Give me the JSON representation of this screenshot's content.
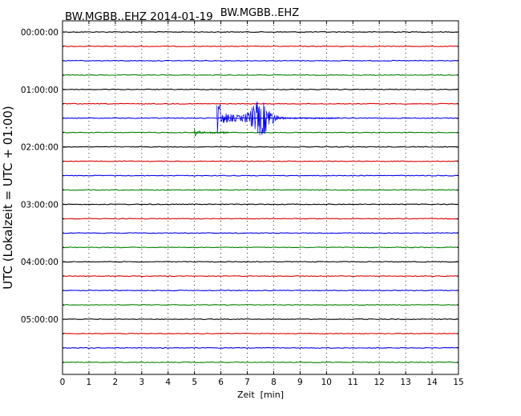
{
  "figure": {
    "title_left": "BW.MGBB..EHZ 2014-01-19",
    "title_center": "BW.MGBB..EHZ"
  },
  "chart_data": {
    "type": "line",
    "chart_kind": "dayplot-seismogram",
    "xlabel": "Zeit  [min]",
    "ylabel": "UTC (Lokalzeit = UTC + 01:00)",
    "xlim": [
      0,
      15
    ],
    "x_ticks": [
      "0",
      "1",
      "2",
      "3",
      "4",
      "5",
      "6",
      "7",
      "8",
      "9",
      "10",
      "11",
      "12",
      "13",
      "14",
      "15"
    ],
    "y_tick_labels": [
      "00:00:00",
      "01:00:00",
      "02:00:00",
      "03:00:00",
      "04:00:00",
      "05:00:00"
    ],
    "rows_per_hour": 4,
    "row_count": 24,
    "row_colors": [
      "#000000",
      "#dd0000",
      "#0000ee",
      "#008000"
    ],
    "grid": "dotted vertical lines at each minute tick",
    "events": [
      {
        "row_index": 6,
        "row_color": "#0000ee",
        "onset_min": 5.85,
        "spike_peak_min": 5.9,
        "coda_peak_min": 7.5,
        "end_min": 10.5,
        "description": "earthquake signal, sharp spike then emergent coda"
      },
      {
        "row_index": 7,
        "row_color": "#008000",
        "onset_min": 5.0,
        "end_min": 6.3,
        "description": "small precursor wiggle"
      }
    ]
  }
}
